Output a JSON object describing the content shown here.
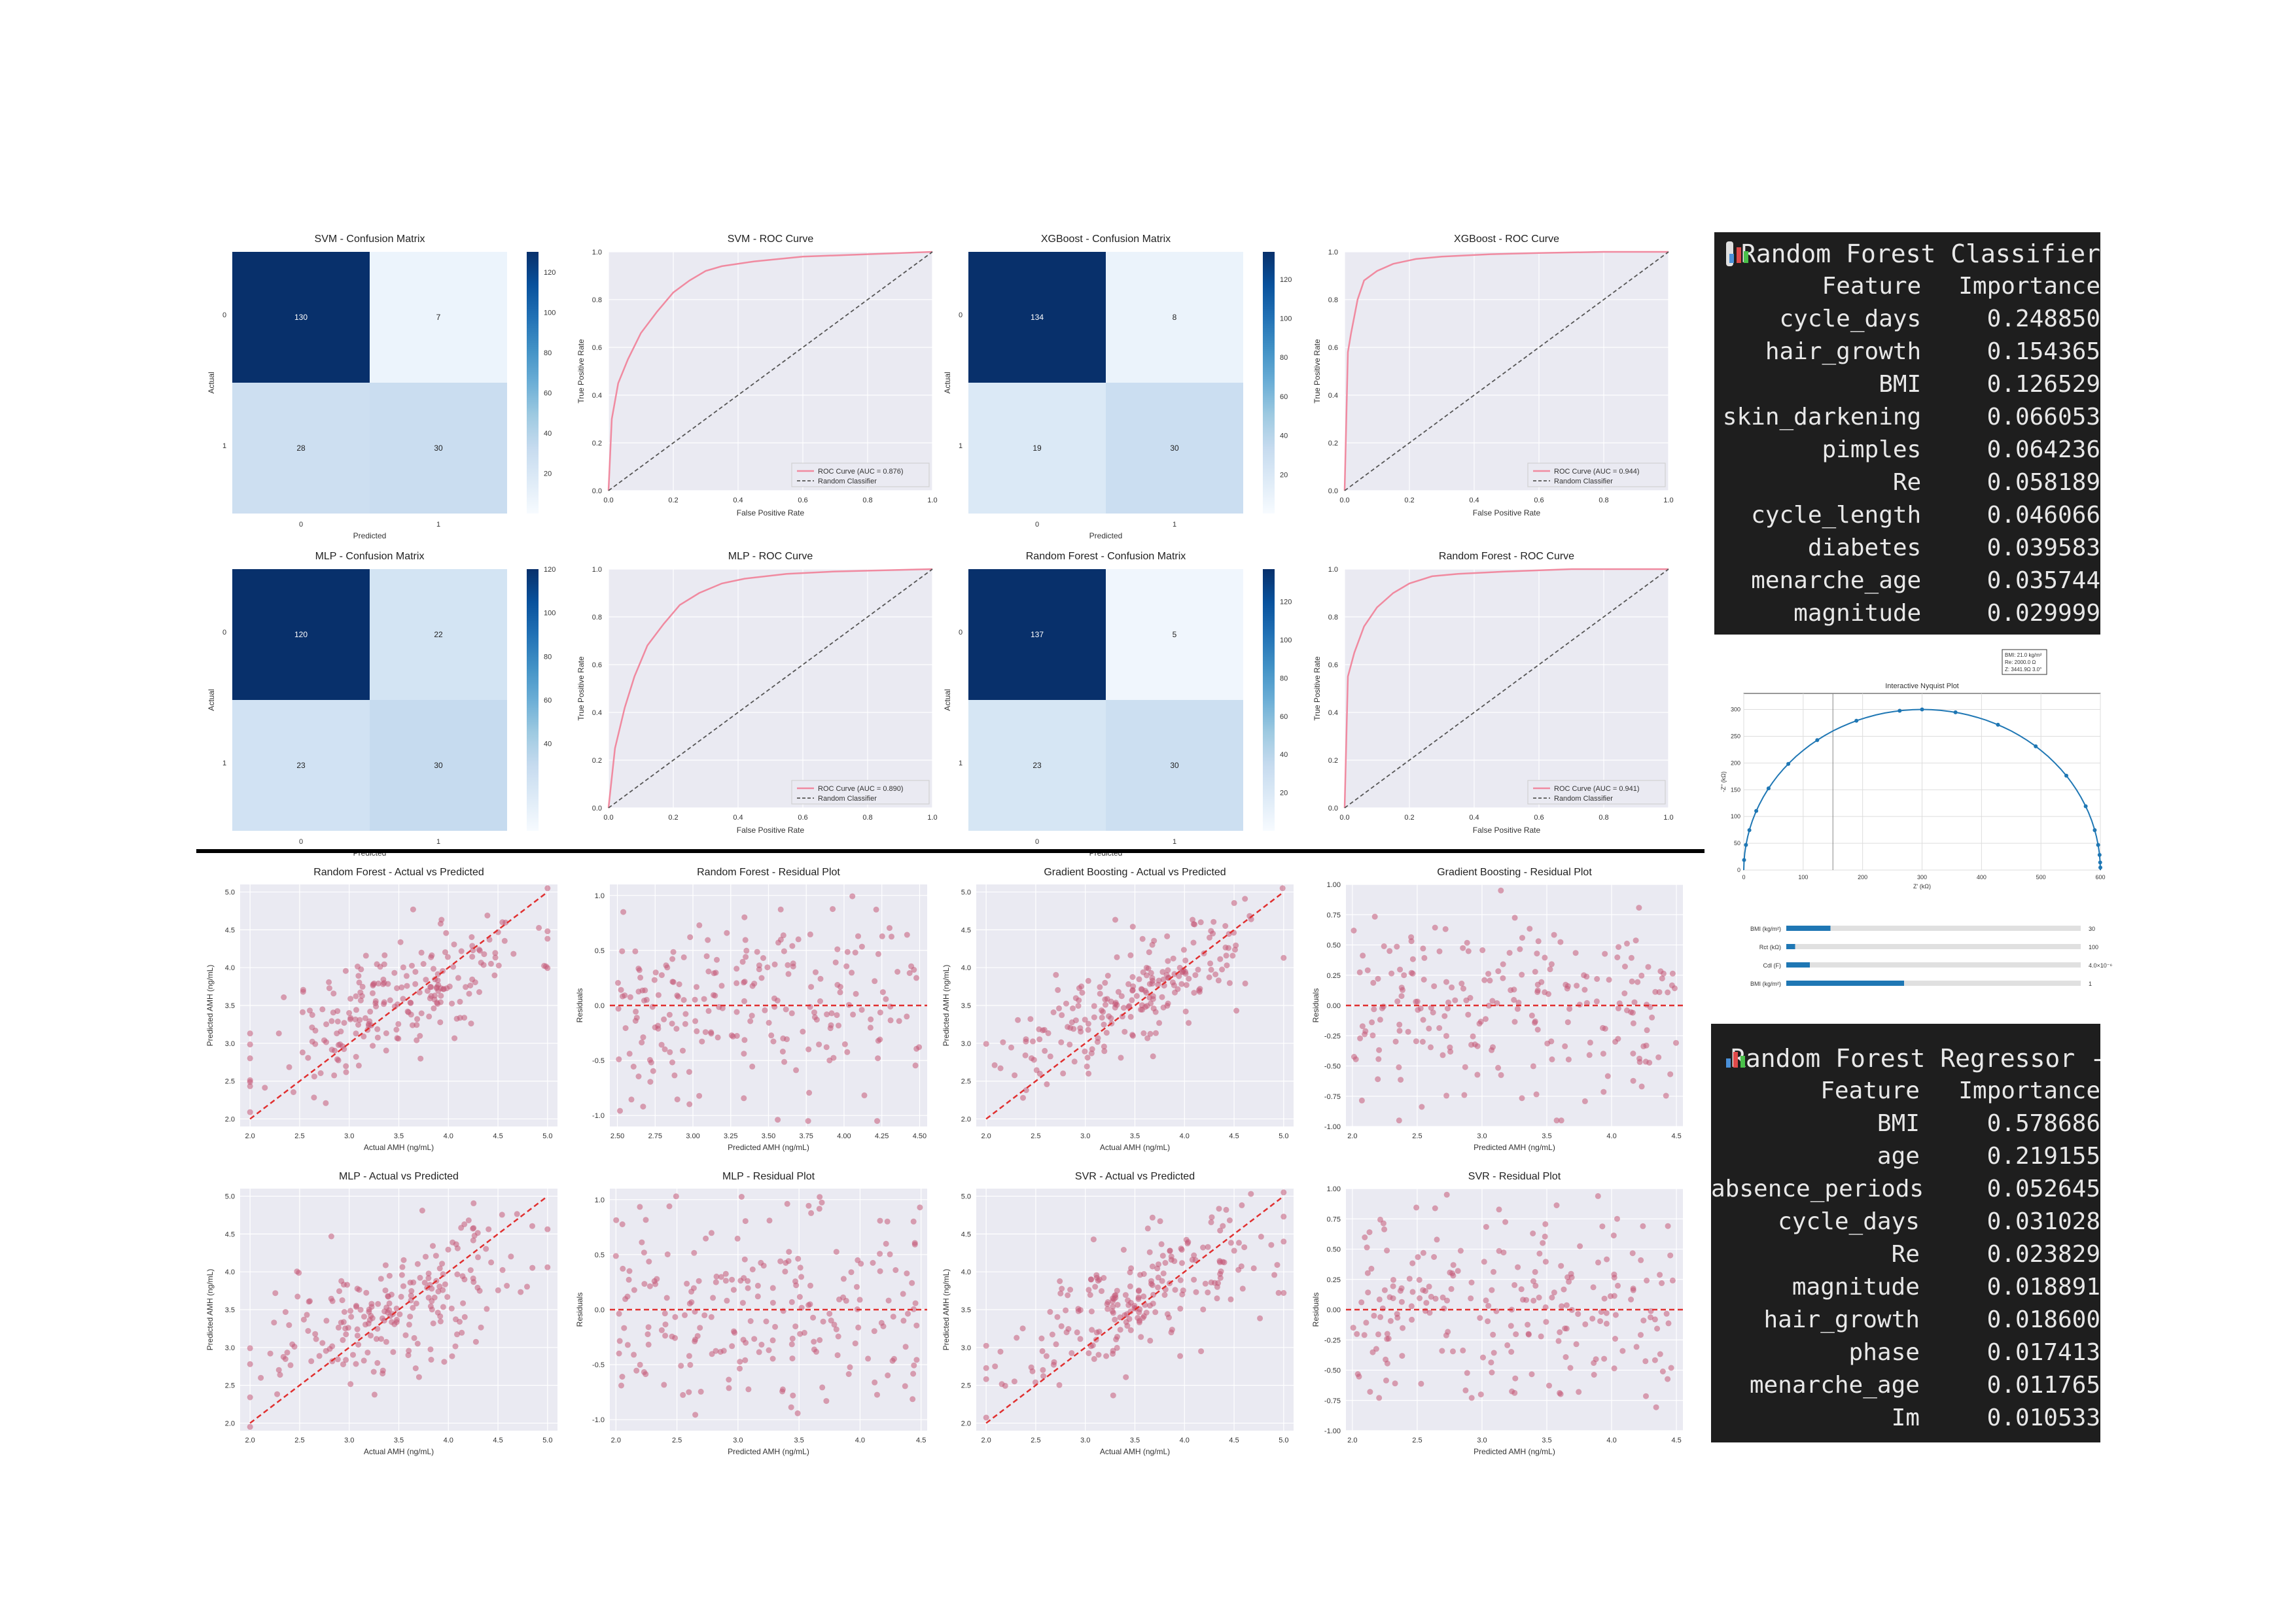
{
  "classification": {
    "panels": [
      {
        "id": "svm",
        "cm_title": "SVM - Confusion Matrix",
        "roc_title": "SVM - ROC Curve",
        "matrix": [
          [
            130,
            7
          ],
          [
            28,
            30
          ]
        ],
        "roc_label": "ROC Curve (AUC = 0.876)",
        "cbar_ticks": [
          20,
          40,
          60,
          80,
          100,
          120
        ],
        "cbar_max": 130
      },
      {
        "id": "xgb",
        "cm_title": "XGBoost - Confusion Matrix",
        "roc_title": "XGBoost - ROC Curve",
        "matrix": [
          [
            134,
            8
          ],
          [
            19,
            30
          ]
        ],
        "roc_label": "ROC Curve (AUC = 0.944)",
        "cbar_ticks": [
          20,
          40,
          60,
          80,
          100,
          120
        ],
        "cbar_max": 134
      },
      {
        "id": "mlp",
        "cm_title": "MLP - Confusion Matrix",
        "roc_title": "MLP - ROC Curve",
        "matrix": [
          [
            120,
            22
          ],
          [
            23,
            30
          ]
        ],
        "roc_label": "ROC Curve (AUC = 0.890)",
        "cbar_ticks": [
          40,
          60,
          80,
          100,
          120
        ],
        "cbar_max": 120
      },
      {
        "id": "rf",
        "cm_title": "Random Forest - Confusion Matrix",
        "roc_title": "Random Forest - ROC Curve",
        "matrix": [
          [
            137,
            5
          ],
          [
            23,
            30
          ]
        ],
        "roc_label": "ROC Curve (AUC = 0.941)",
        "cbar_ticks": [
          20,
          40,
          60,
          80,
          100,
          120
        ],
        "cbar_max": 137
      }
    ],
    "cm_xlabel": "Predicted",
    "cm_ylabel": "Actual",
    "cm_ticks": [
      "0",
      "1"
    ],
    "roc_xlabel": "False Positive Rate",
    "roc_ylabel": "True Positive Rate",
    "random_label": "Random Classifier",
    "roc_ticks": [
      "0.0",
      "0.2",
      "0.4",
      "0.6",
      "0.8",
      "1.0"
    ]
  },
  "chart_data": [
    {
      "type": "heatmap",
      "title": "SVM - Confusion Matrix",
      "xlabel": "Predicted",
      "ylabel": "Actual",
      "values": [
        [
          130,
          7
        ],
        [
          28,
          30
        ]
      ]
    },
    {
      "type": "line",
      "title": "SVM - ROC Curve",
      "xlabel": "False Positive Rate",
      "ylabel": "True Positive Rate",
      "series": [
        {
          "name": "ROC Curve (AUC = 0.876)",
          "x": [
            0,
            0.01,
            0.03,
            0.06,
            0.1,
            0.15,
            0.2,
            0.25,
            0.3,
            0.35,
            0.45,
            0.6,
            0.8,
            1.0
          ],
          "y": [
            0,
            0.3,
            0.45,
            0.55,
            0.66,
            0.75,
            0.83,
            0.88,
            0.92,
            0.94,
            0.96,
            0.98,
            0.99,
            1.0
          ]
        },
        {
          "name": "Random Classifier",
          "x": [
            0,
            1
          ],
          "y": [
            0,
            1
          ]
        }
      ]
    },
    {
      "type": "heatmap",
      "title": "XGBoost - Confusion Matrix",
      "xlabel": "Predicted",
      "ylabel": "Actual",
      "values": [
        [
          134,
          8
        ],
        [
          19,
          30
        ]
      ]
    },
    {
      "type": "line",
      "title": "XGBoost - ROC Curve",
      "xlabel": "False Positive Rate",
      "ylabel": "True Positive Rate",
      "series": [
        {
          "name": "ROC Curve (AUC = 0.944)",
          "x": [
            0,
            0.01,
            0.02,
            0.04,
            0.06,
            0.1,
            0.15,
            0.22,
            0.3,
            0.45,
            0.6,
            0.8,
            1.0
          ],
          "y": [
            0,
            0.58,
            0.66,
            0.8,
            0.88,
            0.92,
            0.95,
            0.97,
            0.98,
            0.99,
            0.995,
            1.0,
            1.0
          ]
        },
        {
          "name": "Random Classifier",
          "x": [
            0,
            1
          ],
          "y": [
            0,
            1
          ]
        }
      ]
    },
    {
      "type": "heatmap",
      "title": "MLP - Confusion Matrix",
      "xlabel": "Predicted",
      "ylabel": "Actual",
      "values": [
        [
          120,
          22
        ],
        [
          23,
          30
        ]
      ]
    },
    {
      "type": "line",
      "title": "MLP - ROC Curve",
      "xlabel": "False Positive Rate",
      "ylabel": "True Positive Rate",
      "series": [
        {
          "name": "ROC Curve (AUC = 0.890)",
          "x": [
            0,
            0.02,
            0.05,
            0.08,
            0.12,
            0.17,
            0.22,
            0.28,
            0.35,
            0.42,
            0.55,
            0.7,
            1.0
          ],
          "y": [
            0,
            0.25,
            0.42,
            0.55,
            0.68,
            0.77,
            0.85,
            0.9,
            0.94,
            0.96,
            0.98,
            0.99,
            1.0
          ]
        },
        {
          "name": "Random Classifier",
          "x": [
            0,
            1
          ],
          "y": [
            0,
            1
          ]
        }
      ]
    },
    {
      "type": "heatmap",
      "title": "Random Forest - Confusion Matrix",
      "xlabel": "Predicted",
      "ylabel": "Actual",
      "values": [
        [
          137,
          5
        ],
        [
          23,
          30
        ]
      ]
    },
    {
      "type": "line",
      "title": "Random Forest - ROC Curve",
      "xlabel": "False Positive Rate",
      "ylabel": "True Positive Rate",
      "series": [
        {
          "name": "ROC Curve (AUC = 0.941)",
          "x": [
            0,
            0.01,
            0.03,
            0.06,
            0.1,
            0.15,
            0.2,
            0.27,
            0.35,
            0.5,
            0.7,
            1.0
          ],
          "y": [
            0,
            0.55,
            0.65,
            0.76,
            0.84,
            0.9,
            0.94,
            0.97,
            0.98,
            0.99,
            1.0,
            1.0
          ]
        },
        {
          "name": "Random Classifier",
          "x": [
            0,
            1
          ],
          "y": [
            0,
            1
          ]
        }
      ]
    },
    {
      "type": "scatter",
      "title": "Random Forest - Actual vs Predicted",
      "xlabel": "Actual AMH (ng/mL)",
      "ylabel": "Predicted AMH (ng/mL)",
      "xlim": [
        1.9,
        5.1
      ],
      "ylim": [
        1.9,
        5.1
      ],
      "seed": 11,
      "n": 220,
      "xy_range": [
        2.0,
        5.0
      ],
      "spread": 0.4,
      "slope": 0.55
    },
    {
      "type": "scatter",
      "title": "Random Forest - Residual Plot",
      "xlabel": "Predicted AMH (ng/mL)",
      "ylabel": "Residuals",
      "xlim": [
        2.45,
        4.55
      ],
      "ylim": [
        -1.1,
        1.1
      ],
      "seed": 12,
      "n": 220,
      "x_range": [
        2.5,
        4.5
      ],
      "res_spread": 0.45
    },
    {
      "type": "scatter",
      "title": "Gradient Boosting - Actual vs Predicted",
      "xlabel": "Actual AMH (ng/mL)",
      "ylabel": "Predicted AMH (ng/mL)",
      "xlim": [
        1.9,
        5.1
      ],
      "ylim": [
        1.9,
        5.1
      ],
      "seed": 13,
      "n": 220,
      "xy_range": [
        2.0,
        5.0
      ],
      "spread": 0.35,
      "slope": 0.65
    },
    {
      "type": "scatter",
      "title": "Gradient Boosting - Residual Plot",
      "xlabel": "Predicted AMH (ng/mL)",
      "ylabel": "Residuals",
      "xlim": [
        1.95,
        4.55
      ],
      "ylim": [
        -1.0,
        1.0
      ],
      "seed": 14,
      "n": 220,
      "x_range": [
        2.0,
        4.5
      ],
      "res_spread": 0.38
    },
    {
      "type": "scatter",
      "title": "MLP - Actual vs Predicted",
      "xlabel": "Actual AMH (ng/mL)",
      "ylabel": "Predicted AMH (ng/mL)",
      "xlim": [
        1.9,
        5.1
      ],
      "ylim": [
        1.9,
        5.1
      ],
      "seed": 15,
      "n": 220,
      "xy_range": [
        2.0,
        5.0
      ],
      "spread": 0.42,
      "slope": 0.55
    },
    {
      "type": "scatter",
      "title": "MLP - Residual Plot",
      "xlabel": "Predicted AMH (ng/mL)",
      "ylabel": "Residuals",
      "xlim": [
        1.95,
        4.55
      ],
      "ylim": [
        -1.1,
        1.1
      ],
      "seed": 16,
      "n": 220,
      "x_range": [
        2.0,
        4.5
      ],
      "res_spread": 0.45
    },
    {
      "type": "scatter",
      "title": "SVR - Actual vs Predicted",
      "xlabel": "Actual AMH (ng/mL)",
      "ylabel": "Predicted AMH (ng/mL)",
      "xlim": [
        1.9,
        5.1
      ],
      "ylim": [
        1.9,
        5.1
      ],
      "seed": 17,
      "n": 220,
      "xy_range": [
        2.0,
        5.0
      ],
      "spread": 0.38,
      "slope": 0.6
    },
    {
      "type": "scatter",
      "title": "SVR - Residual Plot",
      "xlabel": "Predicted AMH (ng/mL)",
      "ylabel": "Residuals",
      "xlim": [
        1.95,
        4.55
      ],
      "ylim": [
        -1.0,
        1.0
      ],
      "seed": 18,
      "n": 220,
      "x_range": [
        2.0,
        4.5
      ],
      "res_spread": 0.4
    },
    {
      "type": "line",
      "title": "Interactive Nyquist Plot",
      "xlabel": "Z' (kΩ)",
      "ylabel": "-Z'' (kΩ)",
      "xlim": [
        0,
        600
      ],
      "ylim": [
        0,
        330
      ],
      "semicircle": {
        "center": 300,
        "radius": 300
      }
    }
  ],
  "regression_titles": [
    "Random Forest - Actual vs Predicted",
    "Random Forest - Residual Plot",
    "Gradient Boosting - Actual vs Predicted",
    "Gradient Boosting - Residual Plot",
    "MLP - Actual vs Predicted",
    "MLP - Residual Plot",
    "SVR - Actual vs Predicted",
    "SVR - Residual Plot"
  ],
  "regression": {
    "actual_xlabel": "Actual AMH (ng/mL)",
    "predicted_ylabel": "Predicted AMH (ng/mL)",
    "residual_xlabel": "Predicted AMH (ng/mL)",
    "residual_ylabel": "Residuals",
    "av_ticks": [
      "2.0",
      "2.5",
      "3.0",
      "3.5",
      "4.0",
      "4.5",
      "5.0"
    ],
    "rf_res_xticks": [
      "2.50",
      "2.75",
      "3.00",
      "3.25",
      "3.50",
      "3.75",
      "4.00",
      "4.25",
      "4.50"
    ],
    "rf_res_yticks": [
      "-1.0",
      "-0.5",
      "0.0",
      "0.5",
      "1.0"
    ],
    "gb_res_yticks": [
      "-1.00",
      "-0.75",
      "-0.50",
      "-0.25",
      "0.00",
      "0.25",
      "0.50",
      "0.75",
      "1.00"
    ],
    "res_xticks": [
      "2.0",
      "2.5",
      "3.0",
      "3.5",
      "4.0",
      "4.5"
    ]
  },
  "nyquist": {
    "title": "Interactive Nyquist Plot",
    "xlabel": "Z' (kΩ)",
    "ylabel": "-Z'' (kΩ)",
    "legend_lines": [
      "BMI: 21.0 kg/m²",
      "Re: 2000.0 Ω",
      "Z: 3441.9Ω 3.0°"
    ],
    "xticks": [
      "0",
      "100",
      "200",
      "300",
      "400",
      "500",
      "600"
    ],
    "yticks": [
      "0",
      "50",
      "100",
      "150",
      "200",
      "250",
      "300"
    ],
    "sliders": [
      {
        "label": "BMI (kg/m²)",
        "value": 0.15,
        "val_text": "30"
      },
      {
        "label": "Rct (kΩ)",
        "value": 0.03,
        "val_text": "100"
      },
      {
        "label": "Cdl (F)",
        "value": 0.08,
        "val_text": "4.0×10⁻⁶"
      },
      {
        "label": "BMI (kg/m²)",
        "value": 0.4,
        "val_text": "1"
      }
    ]
  },
  "rf_classifier": {
    "title": "Random Forest Classifier",
    "header": [
      "Feature",
      "Importance"
    ],
    "rows": [
      [
        "cycle_days",
        "0.248850"
      ],
      [
        "hair_growth",
        "0.154365"
      ],
      [
        "BMI",
        "0.126529"
      ],
      [
        "skin_darkening",
        "0.066053"
      ],
      [
        "pimples",
        "0.064236"
      ],
      [
        "Re",
        "0.058189"
      ],
      [
        "cycle_length",
        "0.046066"
      ],
      [
        "diabetes",
        "0.039583"
      ],
      [
        "menarche_age",
        "0.035744"
      ],
      [
        "magnitude",
        "0.029999"
      ]
    ]
  },
  "rf_regressor": {
    "title": "Random Forest Regressor -",
    "header": [
      "Feature",
      "Importance"
    ],
    "rows": [
      [
        "BMI",
        "0.578686"
      ],
      [
        "age",
        "0.219155"
      ],
      [
        "absence_periods",
        "0.052645"
      ],
      [
        "cycle_days",
        "0.031028"
      ],
      [
        "Re",
        "0.023829"
      ],
      [
        "magnitude",
        "0.018891"
      ],
      [
        "hair_growth",
        "0.018600"
      ],
      [
        "phase",
        "0.017413"
      ],
      [
        "menarche_age",
        "0.011765"
      ],
      [
        "Im",
        "0.010533"
      ]
    ]
  },
  "colors": {
    "roc": "#f08aa0",
    "random": "#555555",
    "scatter": "#c45a78",
    "fit": "#e03030",
    "plot_bg": "#eaeaf2",
    "nyquist": "#1f77b4",
    "slider": "#1f77b4"
  }
}
